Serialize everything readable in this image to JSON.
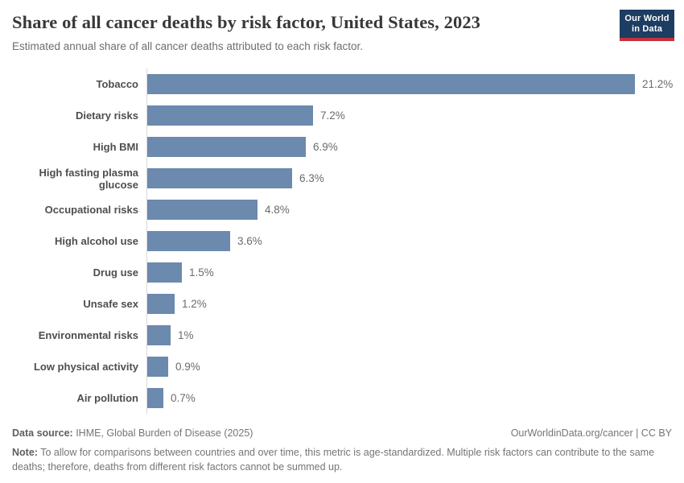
{
  "header": {
    "title": "Share of all cancer deaths by risk factor, United States, 2023",
    "subtitle": "Estimated annual share of all cancer deaths attributed to each risk factor.",
    "logo": {
      "line1": "Our World",
      "line2": "in Data"
    }
  },
  "chart_data": {
    "type": "bar",
    "orientation": "horizontal",
    "title": "Share of all cancer deaths by risk factor, United States, 2023",
    "xlabel": "",
    "ylabel": "",
    "xlim": [
      0,
      22
    ],
    "grid": false,
    "legend": false,
    "bar_color": "#6c89ae",
    "axis_color": "#d9d9d9",
    "categories": [
      "Tobacco",
      "Dietary risks",
      "High BMI",
      "High fasting plasma glucose",
      "Occupational risks",
      "High alcohol use",
      "Drug use",
      "Unsafe sex",
      "Environmental risks",
      "Low physical activity",
      "Air pollution"
    ],
    "values": [
      21.2,
      7.2,
      6.9,
      6.3,
      4.8,
      3.6,
      1.5,
      1.2,
      1,
      0.9,
      0.7
    ],
    "value_labels": [
      "21.2%",
      "7.2%",
      "6.9%",
      "6.3%",
      "4.8%",
      "3.6%",
      "1.5%",
      "1.2%",
      "1%",
      "0.9%",
      "0.7%"
    ]
  },
  "footer": {
    "source_label": "Data source:",
    "source_text": " IHME, Global Burden of Disease (2025)",
    "rights": "OurWorldinData.org/cancer | CC BY",
    "note_label": "Note:",
    "note_text": " To allow for comparisons between countries and over time, this metric is age-standardized. Multiple risk factors can contribute to the same deaths; therefore, deaths from different risk factors cannot be summed up."
  }
}
